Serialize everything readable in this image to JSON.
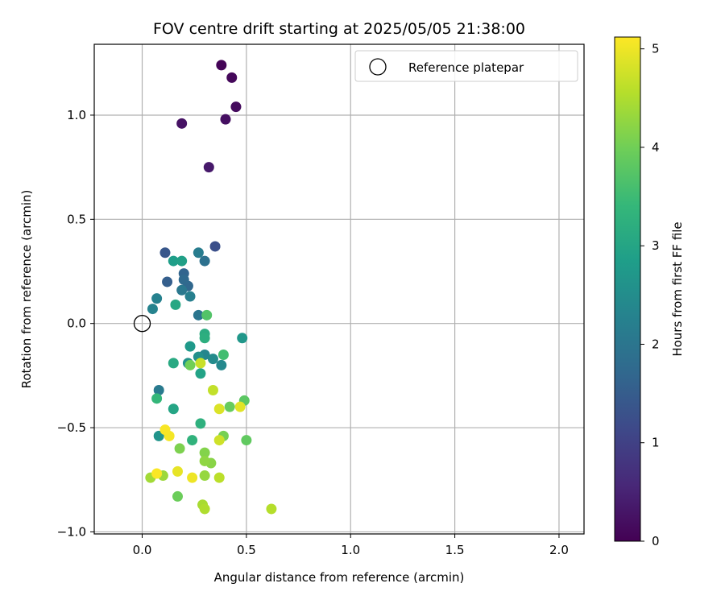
{
  "chart_data": {
    "type": "scatter",
    "title": "FOV centre drift starting at 2025/05/05 21:38:00",
    "xlabel": "Angular distance from reference (arcmin)",
    "ylabel": "Rotation from reference (arcmin)",
    "xlim": [
      -0.23,
      2.12
    ],
    "ylim": [
      -1.01,
      1.34
    ],
    "xticks": [
      0.0,
      0.5,
      1.0,
      1.5,
      2.0
    ],
    "xtick_labels": [
      "0.0",
      "0.5",
      "1.0",
      "1.5",
      "2.0"
    ],
    "yticks": [
      -1.0,
      -0.5,
      0.0,
      0.5,
      1.0
    ],
    "ytick_labels": [
      "−1.0",
      "−0.5",
      "0.0",
      "0.5",
      "1.0"
    ],
    "grid": true,
    "legend": {
      "position": "top-right",
      "entries": [
        "Reference platepar"
      ]
    },
    "reference_point": {
      "x": 0.0,
      "y": 0.0,
      "marker": "open-circle"
    },
    "colorbar": {
      "label": "Hours from first FF file",
      "range": [
        0,
        5.12
      ],
      "ticks": [
        0,
        1,
        2,
        3,
        4,
        5
      ],
      "tick_labels": [
        "0",
        "1",
        "2",
        "3",
        "4",
        "5"
      ],
      "colormap": "viridis"
    },
    "colormap_stops": [
      "#440154",
      "#482878",
      "#3e4989",
      "#31688e",
      "#26828e",
      "#1f9e89",
      "#35b779",
      "#6ece58",
      "#b5de2b",
      "#fde725"
    ],
    "points": [
      {
        "x": 0.38,
        "y": 1.24,
        "t": 0.05
      },
      {
        "x": 0.43,
        "y": 1.18,
        "t": 0.1
      },
      {
        "x": 0.45,
        "y": 1.04,
        "t": 0.15
      },
      {
        "x": 0.4,
        "y": 0.98,
        "t": 0.2
      },
      {
        "x": 0.19,
        "y": 0.96,
        "t": 0.25
      },
      {
        "x": 0.32,
        "y": 0.75,
        "t": 0.35
      },
      {
        "x": 0.35,
        "y": 0.37,
        "t": 1.25
      },
      {
        "x": 0.11,
        "y": 0.34,
        "t": 1.4
      },
      {
        "x": 0.12,
        "y": 0.2,
        "t": 1.55
      },
      {
        "x": 0.2,
        "y": 0.24,
        "t": 1.65
      },
      {
        "x": 0.22,
        "y": 0.18,
        "t": 1.7
      },
      {
        "x": 0.2,
        "y": 0.21,
        "t": 1.75
      },
      {
        "x": 0.3,
        "y": 0.3,
        "t": 1.9
      },
      {
        "x": 0.27,
        "y": 0.04,
        "t": 2.0
      },
      {
        "x": 0.19,
        "y": 0.16,
        "t": 2.05
      },
      {
        "x": 0.08,
        "y": -0.32,
        "t": 2.1
      },
      {
        "x": 0.27,
        "y": 0.34,
        "t": 2.15
      },
      {
        "x": 0.23,
        "y": 0.13,
        "t": 2.2
      },
      {
        "x": 0.07,
        "y": 0.12,
        "t": 2.25
      },
      {
        "x": 0.05,
        "y": 0.07,
        "t": 2.3
      },
      {
        "x": 0.3,
        "y": -0.15,
        "t": 2.35
      },
      {
        "x": 0.38,
        "y": -0.2,
        "t": 2.4
      },
      {
        "x": 0.34,
        "y": -0.17,
        "t": 2.45
      },
      {
        "x": 0.27,
        "y": -0.16,
        "t": 2.55
      },
      {
        "x": 0.22,
        "y": -0.19,
        "t": 2.6
      },
      {
        "x": 0.08,
        "y": -0.54,
        "t": 2.65
      },
      {
        "x": 0.48,
        "y": -0.07,
        "t": 2.7
      },
      {
        "x": 0.23,
        "y": -0.11,
        "t": 2.75
      },
      {
        "x": 0.15,
        "y": 0.3,
        "t": 2.85
      },
      {
        "x": 0.19,
        "y": 0.3,
        "t": 2.9
      },
      {
        "x": 0.28,
        "y": -0.24,
        "t": 2.95
      },
      {
        "x": 0.15,
        "y": -0.41,
        "t": 3.0
      },
      {
        "x": 0.16,
        "y": 0.09,
        "t": 3.05
      },
      {
        "x": 0.15,
        "y": -0.19,
        "t": 3.1
      },
      {
        "x": 0.3,
        "y": -0.05,
        "t": 3.15
      },
      {
        "x": 0.3,
        "y": -0.07,
        "t": 3.2
      },
      {
        "x": 0.28,
        "y": -0.48,
        "t": 3.25
      },
      {
        "x": 0.24,
        "y": -0.56,
        "t": 3.3
      },
      {
        "x": 0.07,
        "y": -0.36,
        "t": 3.4
      },
      {
        "x": 0.39,
        "y": -0.15,
        "t": 3.55
      },
      {
        "x": 0.31,
        "y": 0.04,
        "t": 3.7
      },
      {
        "x": 0.49,
        "y": -0.37,
        "t": 3.8
      },
      {
        "x": 0.5,
        "y": -0.56,
        "t": 3.85
      },
      {
        "x": 0.42,
        "y": -0.4,
        "t": 3.9
      },
      {
        "x": 0.17,
        "y": -0.83,
        "t": 3.95
      },
      {
        "x": 0.23,
        "y": -0.2,
        "t": 4.0
      },
      {
        "x": 0.39,
        "y": -0.54,
        "t": 4.05
      },
      {
        "x": 0.18,
        "y": -0.6,
        "t": 4.1
      },
      {
        "x": 0.3,
        "y": -0.62,
        "t": 4.15
      },
      {
        "x": 0.33,
        "y": -0.67,
        "t": 4.2
      },
      {
        "x": 0.3,
        "y": -0.66,
        "t": 4.25
      },
      {
        "x": 0.3,
        "y": -0.73,
        "t": 4.3
      },
      {
        "x": 0.1,
        "y": -0.73,
        "t": 4.35
      },
      {
        "x": 0.04,
        "y": -0.74,
        "t": 4.4
      },
      {
        "x": 0.29,
        "y": -0.87,
        "t": 4.45
      },
      {
        "x": 0.3,
        "y": -0.89,
        "t": 4.5
      },
      {
        "x": 0.62,
        "y": -0.89,
        "t": 4.55
      },
      {
        "x": 0.37,
        "y": -0.74,
        "t": 4.6
      },
      {
        "x": 0.34,
        "y": -0.32,
        "t": 4.65
      },
      {
        "x": 0.28,
        "y": -0.19,
        "t": 4.7
      },
      {
        "x": 0.37,
        "y": -0.56,
        "t": 4.75
      },
      {
        "x": 0.37,
        "y": -0.41,
        "t": 4.85
      },
      {
        "x": 0.47,
        "y": -0.4,
        "t": 4.9
      },
      {
        "x": 0.17,
        "y": -0.71,
        "t": 4.95
      },
      {
        "x": 0.24,
        "y": -0.74,
        "t": 5.0
      },
      {
        "x": 0.13,
        "y": -0.54,
        "t": 5.05
      },
      {
        "x": 0.11,
        "y": -0.51,
        "t": 5.08
      },
      {
        "x": 0.07,
        "y": -0.72,
        "t": 5.1
      }
    ]
  }
}
